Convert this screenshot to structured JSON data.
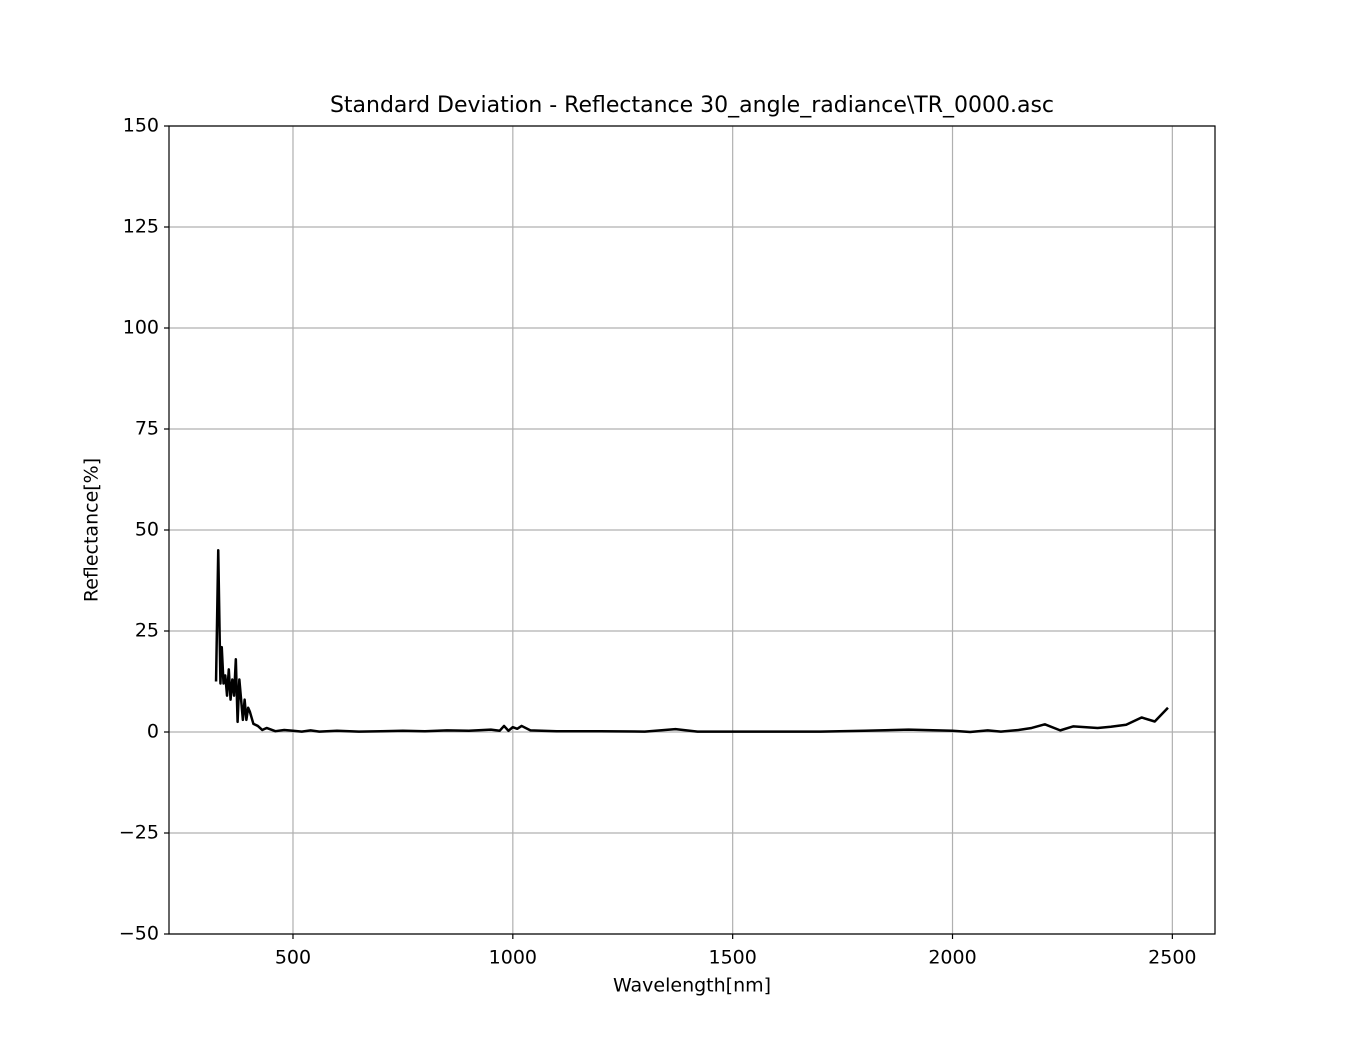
{
  "chart_data": {
    "type": "line",
    "title": "Standard Deviation - Reflectance 30_angle_radiance\\TR_0000.asc",
    "xlabel": "Wavelength[nm]",
    "ylabel": "Reflectance[%]",
    "xlim": [
      218,
      2597
    ],
    "ylim": [
      -50,
      150
    ],
    "xticks": [
      500,
      1000,
      1500,
      2000,
      2500
    ],
    "yticks": [
      {
        "value": -50,
        "label": "−50"
      },
      {
        "value": -25,
        "label": "−25"
      },
      0,
      25,
      50,
      75,
      100,
      125,
      150
    ],
    "grid": true,
    "series": [
      {
        "color": "#000000",
        "x": [
          325,
          330,
          335,
          338,
          342,
          346,
          350,
          354,
          358,
          362,
          366,
          370,
          374,
          378,
          382,
          386,
          390,
          394,
          398,
          402,
          410,
          420,
          430,
          440,
          460,
          480,
          500,
          520,
          540,
          560,
          600,
          650,
          700,
          750,
          800,
          850,
          900,
          950,
          970,
          980,
          990,
          1000,
          1010,
          1020,
          1040,
          1100,
          1200,
          1300,
          1370,
          1420,
          1500,
          1600,
          1700,
          1800,
          1900,
          2000,
          2040,
          2080,
          2110,
          2150,
          2180,
          2210,
          2245,
          2275,
          2330,
          2360,
          2395,
          2430,
          2460,
          2490
        ],
        "values": [
          12.5,
          45,
          12,
          21,
          12,
          14,
          9,
          15.5,
          8,
          13,
          9,
          18,
          2.5,
          13,
          8,
          3,
          8,
          3,
          6,
          5,
          2,
          1.5,
          0.5,
          1,
          0.2,
          0.5,
          0.3,
          0.1,
          0.4,
          0.1,
          0.3,
          0.1,
          0.2,
          0.3,
          0.2,
          0.4,
          0.3,
          0.6,
          0.3,
          1.5,
          0.3,
          1.2,
          0.8,
          1.5,
          0.4,
          0.2,
          0.2,
          0.1,
          0.7,
          0.1,
          0.1,
          0.1,
          0.1,
          0.3,
          0.6,
          0.3,
          0.0,
          0.4,
          0.1,
          0.5,
          1.0,
          1.9,
          0.4,
          1.4,
          1.0,
          1.3,
          1.8,
          3.6,
          2.6,
          6.0
        ]
      }
    ]
  }
}
